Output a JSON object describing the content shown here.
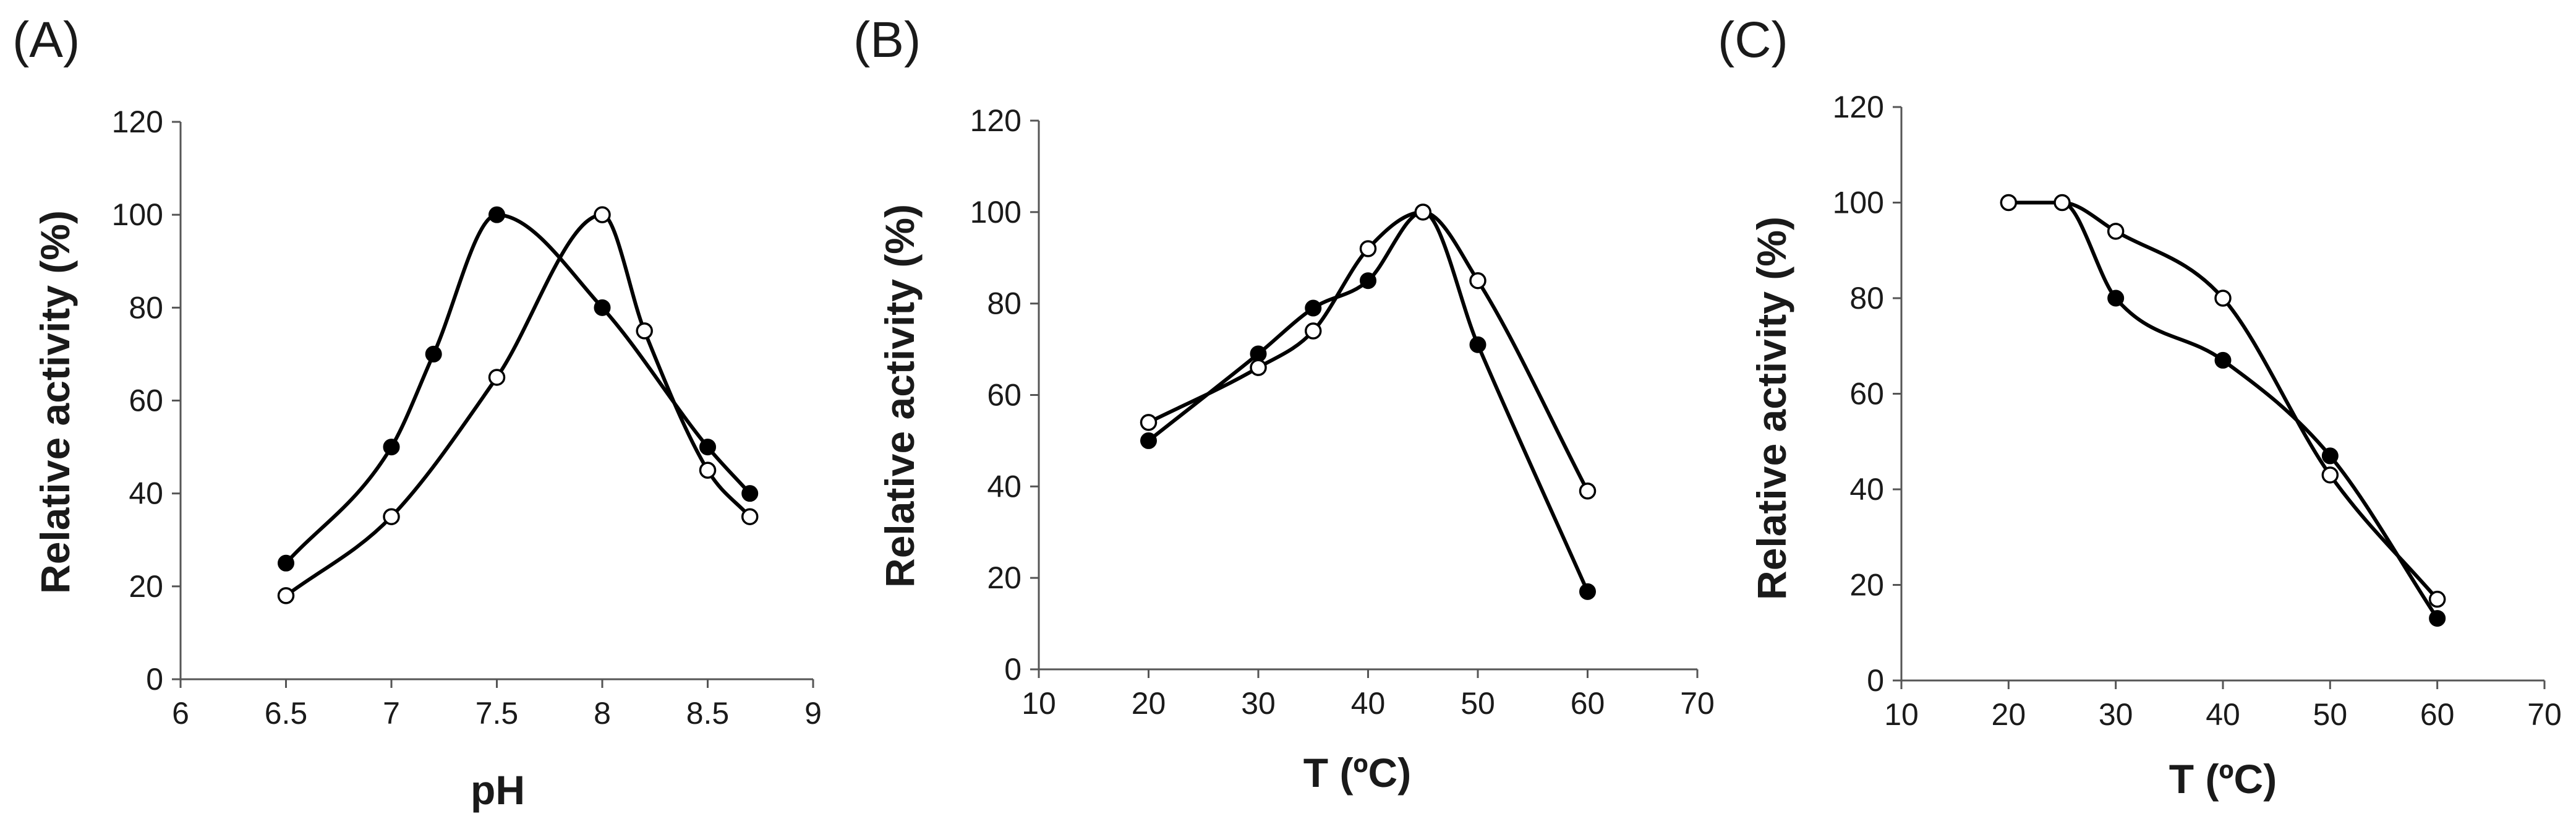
{
  "chart_data": [
    {
      "panel": "(A)",
      "type": "line",
      "xlabel": "pH",
      "ylabel": "Relative activity (%)",
      "xlim": [
        6,
        9
      ],
      "ylim": [
        0,
        120
      ],
      "xticks": [
        6,
        6.5,
        7,
        7.5,
        8,
        8.5,
        9
      ],
      "xtick_labels": [
        "6",
        "6.5",
        "7",
        "7.5",
        "8",
        "8.5",
        "9"
      ],
      "yticks": [
        0,
        20,
        40,
        60,
        80,
        100,
        120
      ],
      "ytick_labels": [
        "0",
        "20",
        "40",
        "60",
        "80",
        "100",
        "120"
      ],
      "series": [
        {
          "name": "filled",
          "marker": "filled",
          "x": [
            6.5,
            7,
            7.2,
            7.5,
            8,
            8.5,
            8.7
          ],
          "y": [
            25,
            50,
            70,
            100,
            80,
            50,
            40
          ]
        },
        {
          "name": "open",
          "marker": "open",
          "x": [
            6.5,
            7,
            7.5,
            8,
            8.2,
            8.5,
            8.7
          ],
          "y": [
            18,
            35,
            65,
            100,
            75,
            45,
            35
          ]
        }
      ]
    },
    {
      "panel": "(B)",
      "type": "line",
      "xlabel": "T (ºC)",
      "ylabel": "Relative activity (%)",
      "xlim": [
        10,
        70
      ],
      "ylim": [
        0,
        120
      ],
      "xticks": [
        10,
        20,
        30,
        40,
        50,
        60,
        70
      ],
      "xtick_labels": [
        "10",
        "20",
        "30",
        "40",
        "50",
        "60",
        "70"
      ],
      "yticks": [
        0,
        20,
        40,
        60,
        80,
        100,
        120
      ],
      "ytick_labels": [
        "0",
        "20",
        "40",
        "60",
        "80",
        "100",
        "120"
      ],
      "series": [
        {
          "name": "filled",
          "marker": "filled",
          "x": [
            20,
            30,
            35,
            40,
            45,
            50,
            60
          ],
          "y": [
            50,
            69,
            79,
            85,
            100,
            71,
            17
          ]
        },
        {
          "name": "open",
          "marker": "open",
          "x": [
            20,
            30,
            35,
            40,
            45,
            50,
            60
          ],
          "y": [
            54,
            66,
            74,
            92,
            100,
            85,
            39
          ]
        }
      ]
    },
    {
      "panel": "(C)",
      "type": "line",
      "xlabel": "T (ºC)",
      "ylabel": "Relative activity (%)",
      "xlim": [
        10,
        70
      ],
      "ylim": [
        0,
        120
      ],
      "xticks": [
        10,
        20,
        30,
        40,
        50,
        60,
        70
      ],
      "xtick_labels": [
        "10",
        "20",
        "30",
        "40",
        "50",
        "60",
        "70"
      ],
      "yticks": [
        0,
        20,
        40,
        60,
        80,
        100,
        120
      ],
      "ytick_labels": [
        "0",
        "20",
        "40",
        "60",
        "80",
        "100",
        "120"
      ],
      "series": [
        {
          "name": "filled",
          "marker": "filled",
          "x": [
            20,
            25,
            30,
            40,
            50,
            60
          ],
          "y": [
            100,
            100,
            80,
            67,
            47,
            13
          ]
        },
        {
          "name": "open",
          "marker": "open",
          "x": [
            20,
            25,
            30,
            40,
            50,
            60
          ],
          "y": [
            100,
            100,
            94,
            80,
            43,
            17
          ]
        }
      ]
    }
  ]
}
